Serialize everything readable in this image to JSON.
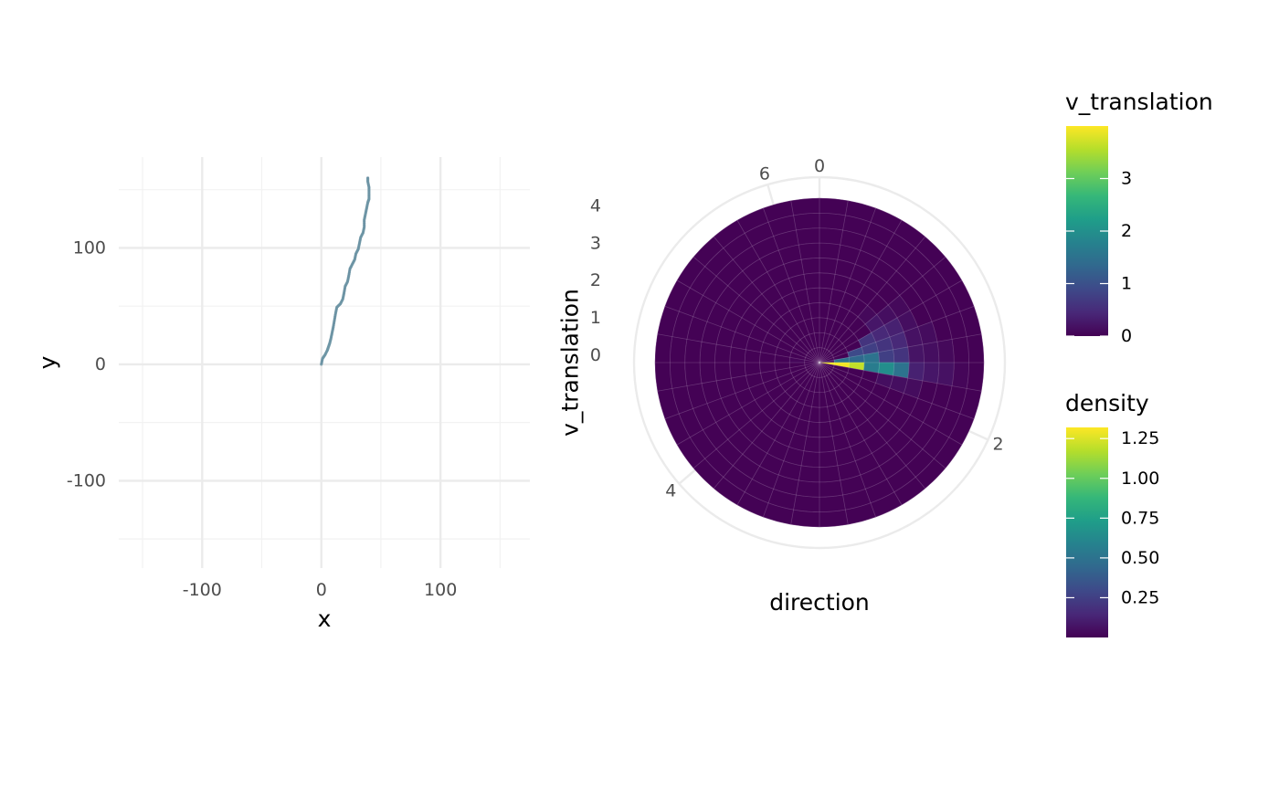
{
  "chart_data": [
    {
      "type": "scatter",
      "xlabel": "x",
      "ylabel": "y",
      "xlim": [
        -170,
        175
      ],
      "ylim": [
        -175,
        178
      ],
      "x_ticks": [
        {
          "value": -100,
          "label": "-100"
        },
        {
          "value": 0,
          "label": "0"
        },
        {
          "value": 100,
          "label": "100"
        }
      ],
      "y_ticks": [
        {
          "value": -100,
          "label": "-100"
        },
        {
          "value": 0,
          "label": "0"
        },
        {
          "value": 100,
          "label": "100"
        }
      ],
      "grid": true,
      "point_color": "#6f96a6",
      "line_color": "#3c4f80",
      "track": [
        {
          "x": 0,
          "y": 0
        },
        {
          "x": 1,
          "y": 5
        },
        {
          "x": 3,
          "y": 8
        },
        {
          "x": 5,
          "y": 12
        },
        {
          "x": 6,
          "y": 15
        },
        {
          "x": 7,
          "y": 18
        },
        {
          "x": 8,
          "y": 22
        },
        {
          "x": 9,
          "y": 27
        },
        {
          "x": 10,
          "y": 32
        },
        {
          "x": 11,
          "y": 38
        },
        {
          "x": 12,
          "y": 44
        },
        {
          "x": 13,
          "y": 49
        },
        {
          "x": 16,
          "y": 52
        },
        {
          "x": 18,
          "y": 56
        },
        {
          "x": 19,
          "y": 61
        },
        {
          "x": 20,
          "y": 67
        },
        {
          "x": 22,
          "y": 71
        },
        {
          "x": 23,
          "y": 76
        },
        {
          "x": 24,
          "y": 82
        },
        {
          "x": 26,
          "y": 86
        },
        {
          "x": 28,
          "y": 90
        },
        {
          "x": 29,
          "y": 95
        },
        {
          "x": 31,
          "y": 99
        },
        {
          "x": 32,
          "y": 104
        },
        {
          "x": 33,
          "y": 109
        },
        {
          "x": 35,
          "y": 113
        },
        {
          "x": 36,
          "y": 118
        },
        {
          "x": 36,
          "y": 124
        },
        {
          "x": 37,
          "y": 129
        },
        {
          "x": 38,
          "y": 134
        },
        {
          "x": 39,
          "y": 139
        },
        {
          "x": 40,
          "y": 142
        },
        {
          "x": 40,
          "y": 147
        },
        {
          "x": 40,
          "y": 152
        },
        {
          "x": 39,
          "y": 157
        },
        {
          "x": 39,
          "y": 161
        }
      ]
    },
    {
      "type": "heatmap",
      "coord": "polar",
      "xlabel": "direction",
      "ylabel": "v_translation",
      "direction_ticks": [
        {
          "value": 0,
          "label": "0"
        },
        {
          "value": 2,
          "label": "2"
        },
        {
          "value": 4,
          "label": "4"
        },
        {
          "value": 6,
          "label": "6"
        }
      ],
      "v_translation_ticks": [
        {
          "value": 0,
          "label": "0"
        },
        {
          "value": 1,
          "label": "1"
        },
        {
          "value": 2,
          "label": "2"
        },
        {
          "value": 3,
          "label": "3"
        },
        {
          "value": 4,
          "label": "4"
        }
      ],
      "direction_range": [
        0,
        6.2832
      ],
      "v_range": [
        0,
        4.4
      ],
      "n_angle_bins": 36,
      "n_radial_bins": 11,
      "base_density": 0.005,
      "density_cells": [
        {
          "angle_bin": 9,
          "radial_bin": 0,
          "density": 1.3
        },
        {
          "angle_bin": 9,
          "radial_bin": 1,
          "density": 1.3
        },
        {
          "angle_bin": 9,
          "radial_bin": 2,
          "density": 1.2
        },
        {
          "angle_bin": 9,
          "radial_bin": 3,
          "density": 0.55
        },
        {
          "angle_bin": 9,
          "radial_bin": 4,
          "density": 0.65
        },
        {
          "angle_bin": 9,
          "radial_bin": 5,
          "density": 0.5
        },
        {
          "angle_bin": 9,
          "radial_bin": 6,
          "density": 0.12
        },
        {
          "angle_bin": 9,
          "radial_bin": 7,
          "density": 0.08
        },
        {
          "angle_bin": 9,
          "radial_bin": 8,
          "density": 0.06
        },
        {
          "angle_bin": 9,
          "radial_bin": 9,
          "density": 0.02
        },
        {
          "angle_bin": 8,
          "radial_bin": 0,
          "density": 0.08
        },
        {
          "angle_bin": 8,
          "radial_bin": 1,
          "density": 0.5
        },
        {
          "angle_bin": 8,
          "radial_bin": 2,
          "density": 0.45
        },
        {
          "angle_bin": 8,
          "radial_bin": 3,
          "density": 0.5
        },
        {
          "angle_bin": 8,
          "radial_bin": 4,
          "density": 0.25
        },
        {
          "angle_bin": 8,
          "radial_bin": 5,
          "density": 0.2
        },
        {
          "angle_bin": 8,
          "radial_bin": 6,
          "density": 0.07
        },
        {
          "angle_bin": 8,
          "radial_bin": 7,
          "density": 0.05
        },
        {
          "angle_bin": 8,
          "radial_bin": 8,
          "density": 0.03
        },
        {
          "angle_bin": 7,
          "radial_bin": 2,
          "density": 0.3
        },
        {
          "angle_bin": 7,
          "radial_bin": 3,
          "density": 0.25
        },
        {
          "angle_bin": 7,
          "radial_bin": 4,
          "density": 0.2
        },
        {
          "angle_bin": 7,
          "radial_bin": 5,
          "density": 0.15
        },
        {
          "angle_bin": 7,
          "radial_bin": 6,
          "density": 0.06
        },
        {
          "angle_bin": 7,
          "radial_bin": 7,
          "density": 0.04
        },
        {
          "angle_bin": 6,
          "radial_bin": 3,
          "density": 0.2
        },
        {
          "angle_bin": 6,
          "radial_bin": 4,
          "density": 0.15
        },
        {
          "angle_bin": 6,
          "radial_bin": 5,
          "density": 0.12
        },
        {
          "angle_bin": 6,
          "radial_bin": 6,
          "density": 0.05
        },
        {
          "angle_bin": 5,
          "radial_bin": 4,
          "density": 0.08
        },
        {
          "angle_bin": 5,
          "radial_bin": 5,
          "density": 0.05
        },
        {
          "angle_bin": 5,
          "radial_bin": 6,
          "density": 0.03
        },
        {
          "angle_bin": 4,
          "radial_bin": 4,
          "density": 0.03
        },
        {
          "angle_bin": 10,
          "radial_bin": 4,
          "density": 0.05
        },
        {
          "angle_bin": 10,
          "radial_bin": 5,
          "density": 0.05
        },
        {
          "angle_bin": 10,
          "radial_bin": 6,
          "density": 0.04
        },
        {
          "angle_bin": 27,
          "radial_bin": 1,
          "density": 0.02
        }
      ]
    }
  ],
  "legends": [
    {
      "title": "v_translation",
      "min": 0,
      "max": 4,
      "ticks": [
        {
          "value": 0,
          "label": "0"
        },
        {
          "value": 1,
          "label": "1"
        },
        {
          "value": 2,
          "label": "2"
        },
        {
          "value": 3,
          "label": "3"
        }
      ]
    },
    {
      "title": "density",
      "min": 0,
      "max": 1.32,
      "ticks": [
        {
          "value": 0.25,
          "label": "0.25"
        },
        {
          "value": 0.5,
          "label": "0.50"
        },
        {
          "value": 0.75,
          "label": "0.75"
        },
        {
          "value": 1.0,
          "label": "1.00"
        },
        {
          "value": 1.25,
          "label": "1.25"
        }
      ]
    }
  ],
  "colors": {
    "viridis": [
      "#440154",
      "#482878",
      "#3e4989",
      "#31688e",
      "#26828e",
      "#1f9e89",
      "#35b779",
      "#6ece58",
      "#b5de2b",
      "#fde725"
    ],
    "grid_major": "#ebebeb",
    "grid_minor": "#f2f2f2"
  }
}
